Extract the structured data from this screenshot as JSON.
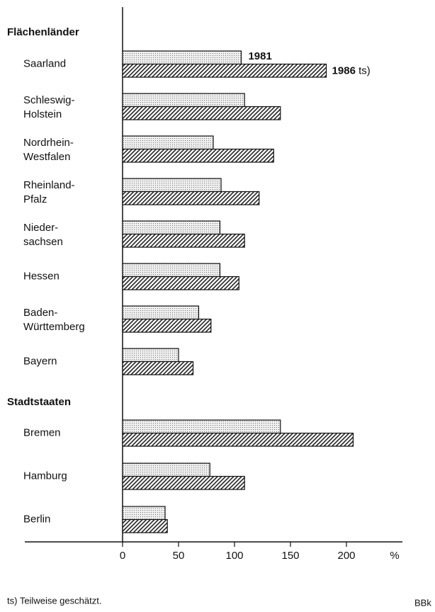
{
  "chart_data": {
    "type": "bar",
    "orientation": "horizontal",
    "group_labels": [
      "Flächenländer",
      "Stadtstaaten"
    ],
    "categories": [
      [
        "Saarland"
      ],
      [
        "Schleswig-",
        "Holstein"
      ],
      [
        "Nordrhein-",
        "Westfalen"
      ],
      [
        "Rheinland-",
        "Pfalz"
      ],
      [
        "Nieder-",
        "sachsen"
      ],
      [
        "Hessen"
      ],
      [
        "Baden-",
        "Württemberg"
      ],
      [
        "Bayern"
      ],
      [
        "Bremen"
      ],
      [
        "Hamburg"
      ],
      [
        "Berlin"
      ]
    ],
    "series": [
      {
        "name": "1981",
        "values": [
          106,
          109,
          81,
          88,
          87,
          87,
          68,
          50,
          141,
          78,
          38
        ]
      },
      {
        "name": "1986",
        "values": [
          182,
          141,
          135,
          122,
          109,
          104,
          79,
          63,
          206,
          109,
          40
        ]
      }
    ],
    "legend_note": "ts)",
    "xlim": [
      0,
      250
    ],
    "xticks": [
      0,
      50,
      100,
      150,
      200
    ],
    "x_unit": "%",
    "footnote": "ts) Teilweise geschätzt.",
    "source": "BBk"
  }
}
